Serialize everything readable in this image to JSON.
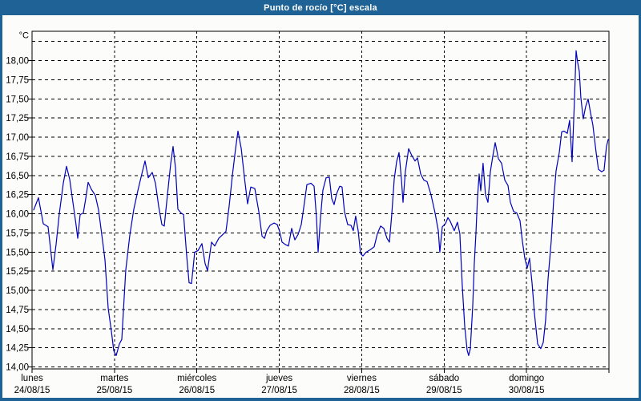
{
  "window": {
    "title": "Punto de rocío [°C] escala",
    "title_bar_color": "#1F6396",
    "frame_color": "#1F6396",
    "background_color": "#FCFDFA"
  },
  "chart_data": {
    "type": "line",
    "title": "Punto de rocío [°C] escala",
    "unit_label": "°C",
    "xlabel": "",
    "ylabel": "°C",
    "ylim": [
      14.0,
      18.4
    ],
    "xlim_days": [
      0,
      7
    ],
    "grid": true,
    "grid_style": "dashed-black",
    "legend_position": "none",
    "line_color": "#0000BD",
    "grid_color": "#000000",
    "y_ticks": [
      {
        "value": 14.0,
        "label": "14,00"
      },
      {
        "value": 14.25,
        "label": "14,25"
      },
      {
        "value": 14.5,
        "label": "14,50"
      },
      {
        "value": 14.75,
        "label": "14,75"
      },
      {
        "value": 15.0,
        "label": "15,00"
      },
      {
        "value": 15.25,
        "label": "15,25"
      },
      {
        "value": 15.5,
        "label": "15,50"
      },
      {
        "value": 15.75,
        "label": "15,75"
      },
      {
        "value": 16.0,
        "label": "16,00"
      },
      {
        "value": 16.25,
        "label": "16,25"
      },
      {
        "value": 16.5,
        "label": "16,50"
      },
      {
        "value": 16.75,
        "label": "16,75"
      },
      {
        "value": 17.0,
        "label": "17,00"
      },
      {
        "value": 17.25,
        "label": "17,25"
      },
      {
        "value": 17.5,
        "label": "17,50"
      },
      {
        "value": 17.75,
        "label": "17,75"
      },
      {
        "value": 18.0,
        "label": "18,00"
      }
    ],
    "unlabeled_gridline_values": [
      18.25
    ],
    "days": [
      {
        "weekday": "lunes",
        "date": "24/08/15"
      },
      {
        "weekday": "martes",
        "date": "25/08/15"
      },
      {
        "weekday": "miércoles",
        "date": "26/08/15"
      },
      {
        "weekday": "jueves",
        "date": "27/08/15"
      },
      {
        "weekday": "viernes",
        "date": "28/08/15"
      },
      {
        "weekday": "sábado",
        "date": "29/08/15"
      },
      {
        "weekday": "domingo",
        "date": "30/08/15"
      }
    ],
    "series": [
      {
        "name": "Punto de rocío [°C]",
        "x_days": [
          0.019,
          0.078,
          0.136,
          0.194,
          0.224,
          0.253,
          0.292,
          0.331,
          0.379,
          0.418,
          0.457,
          0.496,
          0.535,
          0.554,
          0.583,
          0.622,
          0.651,
          0.681,
          0.719,
          0.768,
          0.807,
          0.846,
          0.885,
          0.924,
          0.963,
          0.992,
          1.021,
          1.06,
          1.089,
          1.137,
          1.186,
          1.235,
          1.283,
          1.332,
          1.371,
          1.41,
          1.458,
          1.497,
          1.536,
          1.575,
          1.604,
          1.643,
          1.682,
          1.711,
          1.74,
          1.769,
          1.808,
          1.838,
          1.876,
          1.906,
          1.935,
          1.974,
          2.013,
          2.061,
          2.1,
          2.129,
          2.178,
          2.217,
          2.265,
          2.314,
          2.353,
          2.392,
          2.431,
          2.469,
          2.499,
          2.538,
          2.576,
          2.615,
          2.654,
          2.703,
          2.751,
          2.79,
          2.82,
          2.849,
          2.888,
          2.936,
          2.975,
          3.004,
          3.033,
          3.072,
          3.111,
          3.15,
          3.189,
          3.228,
          3.267,
          3.306,
          3.335,
          3.383,
          3.422,
          3.451,
          3.471,
          3.5,
          3.529,
          3.568,
          3.607,
          3.636,
          3.665,
          3.694,
          3.733,
          3.762,
          3.791,
          3.83,
          3.869,
          3.898,
          3.927,
          3.957,
          3.986,
          4.015,
          4.054,
          4.103,
          4.151,
          4.19,
          4.229,
          4.268,
          4.307,
          4.336,
          4.365,
          4.394,
          4.424,
          4.453,
          4.482,
          4.501,
          4.53,
          4.569,
          4.608,
          4.647,
          4.676,
          4.715,
          4.754,
          4.793,
          4.841,
          4.89,
          4.929,
          4.948,
          4.978,
          5.016,
          5.046,
          5.075,
          5.123,
          5.162,
          5.191,
          5.221,
          5.25,
          5.279,
          5.298,
          5.318,
          5.347,
          5.366,
          5.386,
          5.405,
          5.425,
          5.444,
          5.473,
          5.502,
          5.532,
          5.561,
          5.59,
          5.619,
          5.658,
          5.697,
          5.736,
          5.775,
          5.804,
          5.843,
          5.882,
          5.921,
          5.95,
          5.979,
          6.008,
          6.037,
          6.067,
          6.096,
          6.135,
          6.173,
          6.203,
          6.232,
          6.261,
          6.3,
          6.329,
          6.358,
          6.397,
          6.426,
          6.455,
          6.494,
          6.523,
          6.553,
          6.582,
          6.601,
          6.62,
          6.64,
          6.659,
          6.688,
          6.717,
          6.747,
          6.776,
          6.805,
          6.844,
          6.873,
          6.912,
          6.941,
          6.97,
          6.99
        ],
        "values": [
          16.05,
          16.21,
          15.87,
          15.83,
          15.55,
          15.27,
          15.6,
          16.0,
          16.4,
          16.62,
          16.45,
          16.15,
          15.85,
          15.68,
          15.99,
          16.01,
          16.2,
          16.41,
          16.32,
          16.24,
          16.05,
          15.73,
          15.4,
          14.77,
          14.46,
          14.21,
          14.15,
          14.3,
          14.36,
          15.26,
          15.72,
          16.06,
          16.3,
          16.52,
          16.69,
          16.47,
          16.54,
          16.4,
          16.1,
          15.86,
          15.84,
          16.25,
          16.65,
          16.88,
          16.6,
          16.06,
          16.01,
          15.99,
          15.45,
          15.1,
          15.09,
          15.5,
          15.52,
          15.61,
          15.35,
          15.26,
          15.63,
          15.58,
          15.68,
          15.73,
          15.77,
          16.1,
          16.5,
          16.85,
          17.08,
          16.85,
          16.48,
          16.13,
          16.35,
          16.33,
          16.03,
          15.71,
          15.68,
          15.78,
          15.85,
          15.88,
          15.86,
          15.77,
          15.63,
          15.6,
          15.58,
          15.81,
          15.66,
          15.73,
          15.86,
          16.15,
          16.38,
          16.4,
          16.36,
          15.95,
          15.5,
          15.95,
          16.31,
          16.47,
          16.48,
          16.2,
          16.12,
          16.26,
          16.36,
          16.35,
          16.03,
          15.86,
          15.85,
          15.78,
          15.97,
          15.78,
          15.48,
          15.45,
          15.5,
          15.53,
          15.57,
          15.74,
          15.84,
          15.81,
          15.68,
          15.63,
          16.0,
          16.45,
          16.68,
          16.8,
          16.45,
          16.15,
          16.55,
          16.85,
          16.76,
          16.69,
          16.73,
          16.52,
          16.44,
          16.42,
          16.25,
          16.01,
          15.78,
          15.5,
          15.83,
          15.87,
          15.95,
          15.9,
          15.78,
          15.89,
          15.74,
          15.05,
          14.53,
          14.22,
          14.15,
          14.24,
          14.8,
          15.34,
          15.75,
          16.2,
          16.52,
          16.3,
          16.66,
          16.25,
          16.15,
          16.55,
          16.75,
          16.93,
          16.72,
          16.66,
          16.44,
          16.37,
          16.15,
          16.03,
          16.01,
          15.91,
          15.64,
          15.42,
          15.29,
          15.42,
          15.1,
          14.7,
          14.3,
          14.24,
          14.32,
          14.62,
          15.15,
          15.65,
          16.18,
          16.56,
          16.8,
          17.07,
          17.08,
          17.05,
          17.22,
          16.68,
          17.5,
          18.13,
          17.98,
          17.86,
          17.52,
          17.24,
          17.4,
          17.5,
          17.32,
          17.16,
          16.8,
          16.58,
          16.55,
          16.57,
          16.88,
          16.97
        ]
      }
    ]
  }
}
